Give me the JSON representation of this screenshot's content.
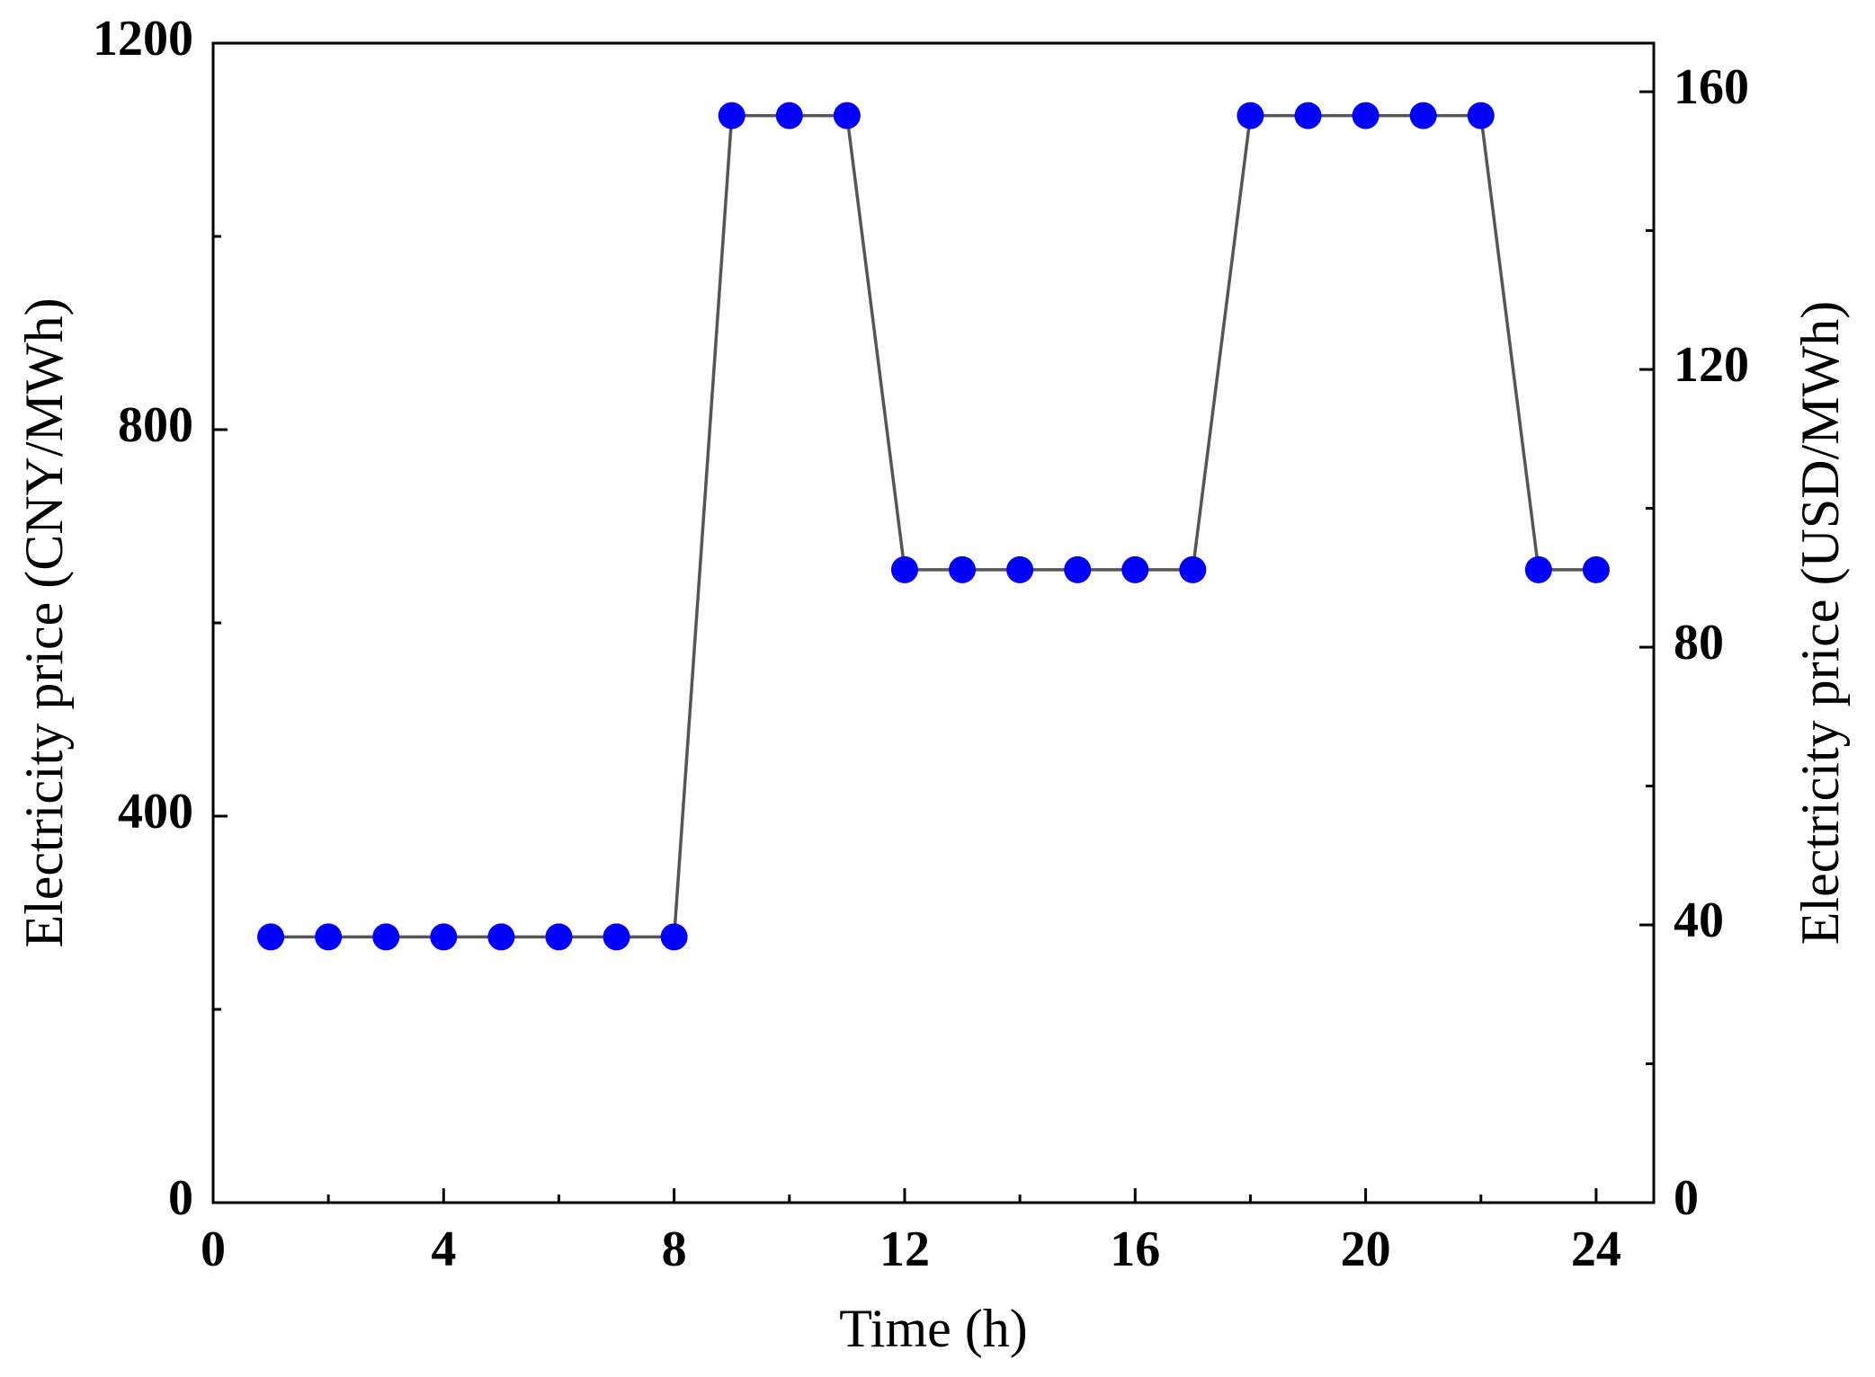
{
  "chart_data": {
    "type": "line",
    "title": "",
    "xlabel": "Time (h)",
    "ylabel": "Electricity price (CNY/MWh)",
    "y2label": "Electricity price (USD/MWh)",
    "xlim": [
      0,
      25
    ],
    "ylim": [
      0,
      1200
    ],
    "y2lim": [
      0,
      167
    ],
    "xticks": [
      0,
      4,
      8,
      12,
      16,
      20,
      24
    ],
    "yticks": [
      0,
      400,
      800,
      1200
    ],
    "y2ticks": [
      0,
      40,
      80,
      120,
      160
    ],
    "grid": false,
    "legend": "none",
    "series": [
      {
        "x": [
          1,
          2,
          3,
          4,
          5,
          6,
          7,
          8,
          9,
          10,
          11,
          12,
          13,
          14,
          15,
          16,
          17,
          18,
          19,
          20,
          21,
          22,
          23,
          24
        ],
        "values": [
          275,
          275,
          275,
          275,
          275,
          275,
          275,
          275,
          1125,
          1125,
          1125,
          655,
          655,
          655,
          655,
          655,
          655,
          1125,
          1125,
          1125,
          1125,
          1125,
          655,
          655
        ],
        "line_color": "#555555",
        "marker_color": "#0000ff"
      }
    ]
  }
}
